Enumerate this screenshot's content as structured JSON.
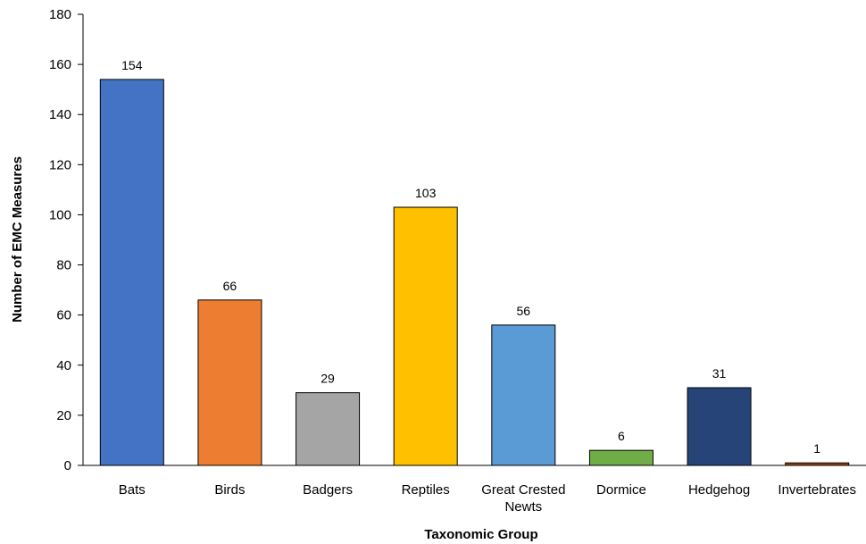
{
  "chart_data": {
    "type": "bar",
    "title": "",
    "xlabel": "Taxonomic Group",
    "ylabel": "Number of EMC Measures",
    "ylim": [
      0,
      180
    ],
    "yticks": [
      0,
      20,
      40,
      60,
      80,
      100,
      120,
      140,
      160,
      180
    ],
    "grid": false,
    "legend": "none",
    "categories": [
      "Bats",
      "Birds",
      "Badgers",
      "Reptiles",
      "Great Crested Newts",
      "Dormice",
      "Hedgehog",
      "Invertebrates"
    ],
    "category_lines": [
      [
        "Bats"
      ],
      [
        "Birds"
      ],
      [
        "Badgers"
      ],
      [
        "Reptiles"
      ],
      [
        "Great Crested",
        "Newts"
      ],
      [
        "Dormice"
      ],
      [
        "Hedgehog"
      ],
      [
        "Invertebrates"
      ]
    ],
    "values": [
      154,
      66,
      29,
      103,
      56,
      6,
      31,
      1
    ],
    "colors": [
      "#4472C4",
      "#ED7D31",
      "#A5A5A5",
      "#FFC000",
      "#5B9BD5",
      "#70AD47",
      "#264478",
      "#9E480E"
    ]
  }
}
